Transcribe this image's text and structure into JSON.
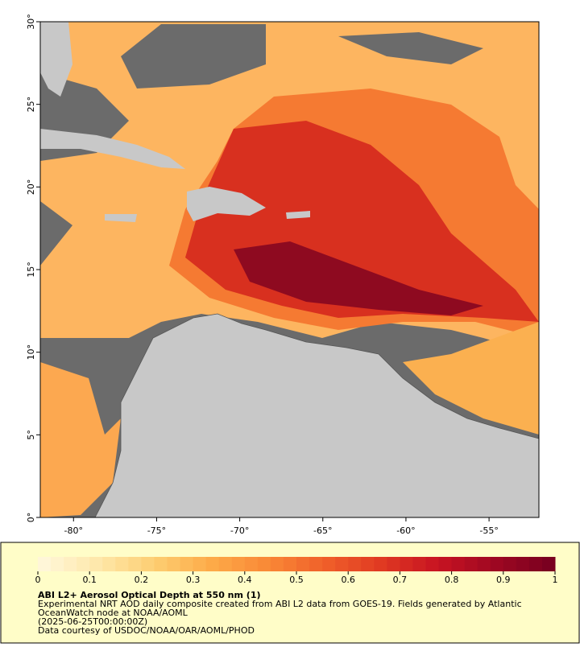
{
  "map": {
    "xlim": [
      -82,
      -52
    ],
    "ylim": [
      0,
      30
    ],
    "xticks": [
      {
        "value": -80,
        "label": "-80°"
      },
      {
        "value": -75,
        "label": "-75°"
      },
      {
        "value": -70,
        "label": "-70°"
      },
      {
        "value": -65,
        "label": "-65°"
      },
      {
        "value": -60,
        "label": "-60°"
      },
      {
        "value": -55,
        "label": "-55°"
      }
    ],
    "yticks": [
      {
        "value": 0,
        "label": "0°"
      },
      {
        "value": 5,
        "label": "5°"
      },
      {
        "value": 10,
        "label": "10°"
      },
      {
        "value": 15,
        "label": "15°"
      },
      {
        "value": 20,
        "label": "20°"
      },
      {
        "value": 25,
        "label": "25°"
      },
      {
        "value": 30,
        "label": "30°"
      }
    ]
  },
  "colorbar": {
    "range": [
      0,
      1
    ],
    "ticks": [
      0,
      0.1,
      0.2,
      0.3,
      0.4,
      0.5,
      0.6,
      0.7,
      0.8,
      0.9,
      1
    ],
    "colors": [
      "#fff6d8",
      "#fee7a8",
      "#fdcd70",
      "#fdaa48",
      "#f98836",
      "#f0602a",
      "#e03a22",
      "#c81422",
      "#a00822",
      "#7a0020"
    ]
  },
  "caption": {
    "title": "ABI L2+ Aerosol Optical Depth at 550 nm (1)",
    "line1": "Experimental NRT AOD daily composite created from ABI L2 data from GOES-19. Fields generated by Atlantic",
    "line2": "OceanWatch node at NOAA/AOML",
    "line3": "(2025-06-25T00:00:00Z)",
    "line4": "Data courtesy of USDOC/NOAA/OAR/AOML/PHOD"
  }
}
